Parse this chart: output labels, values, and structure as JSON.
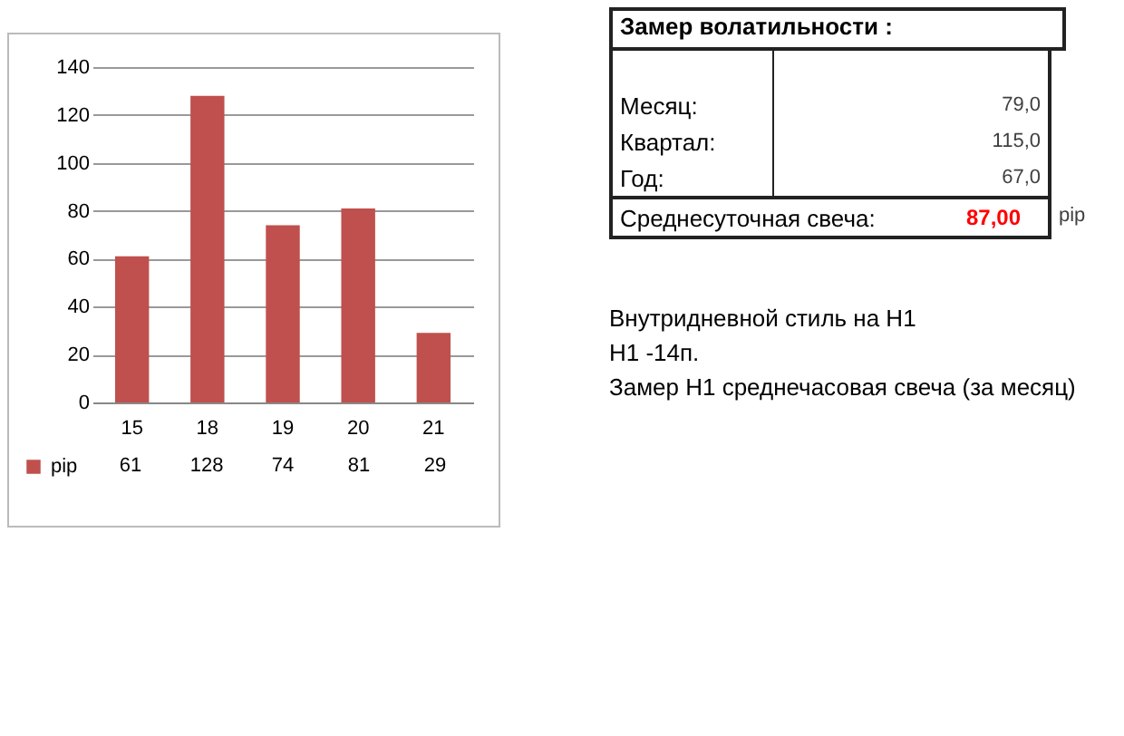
{
  "chart_data": [
    {
      "type": "bar",
      "categories": [
        "15",
        "18",
        "19",
        "20",
        "21"
      ],
      "series": [
        {
          "name": "pip",
          "color": "#c0504d",
          "values": [
            61,
            128,
            74,
            81,
            29
          ]
        }
      ],
      "ylim": [
        0,
        140
      ],
      "yticks": [
        0,
        20,
        40,
        60,
        80,
        100,
        120,
        140
      ],
      "grid": "y",
      "legend": "bottom",
      "data_labels": true
    },
    {
      "type": "other",
      "title": "Замер  волатильности  :",
      "annotations": [
        "Месяц:",
        "79,0",
        "Квартал:",
        "115,0",
        "Год:",
        "67,0",
        "Среднесуточная свеча:",
        "87,00",
        "pip",
        "Внутридневной стиль на H1",
        "H1 -14п.",
        "Замер H1 среднечасовая свеча (за месяц)"
      ]
    }
  ]
}
